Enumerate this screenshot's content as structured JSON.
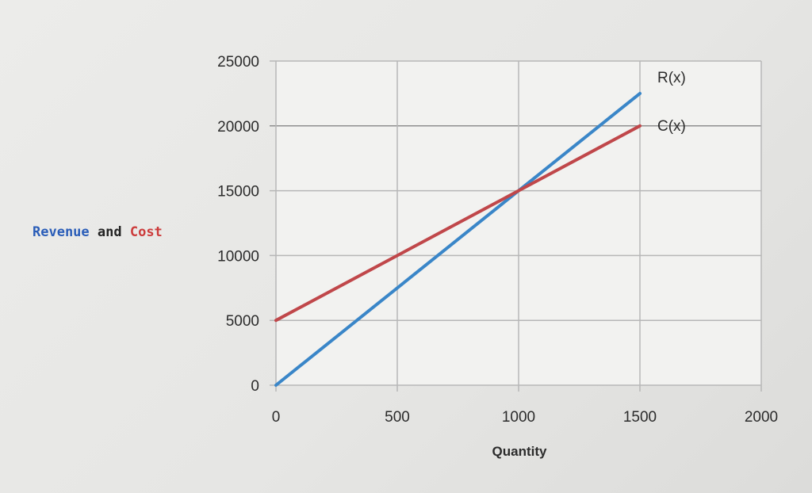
{
  "chart_data": {
    "type": "line",
    "xlabel": "Quantity",
    "ylabel_parts": [
      {
        "text": "Revenue",
        "color": "#2a5db8"
      },
      {
        "text": " and ",
        "color": "#222222"
      },
      {
        "text": "Cost",
        "color": "#cc3b3b"
      }
    ],
    "xlim": [
      0,
      2000
    ],
    "ylim": [
      0,
      25000
    ],
    "x_ticks": [
      0,
      500,
      1000,
      1500,
      2000
    ],
    "y_ticks": [
      0,
      5000,
      10000,
      15000,
      20000,
      25000
    ],
    "grid": true,
    "series": [
      {
        "name": "R(x)",
        "color": "#3a86c8",
        "x": [
          0,
          1500
        ],
        "y": [
          0,
          22500
        ]
      },
      {
        "name": "C(x)",
        "color": "#c0474a",
        "x": [
          0,
          1500
        ],
        "y": [
          5000,
          20000
        ]
      }
    ]
  }
}
